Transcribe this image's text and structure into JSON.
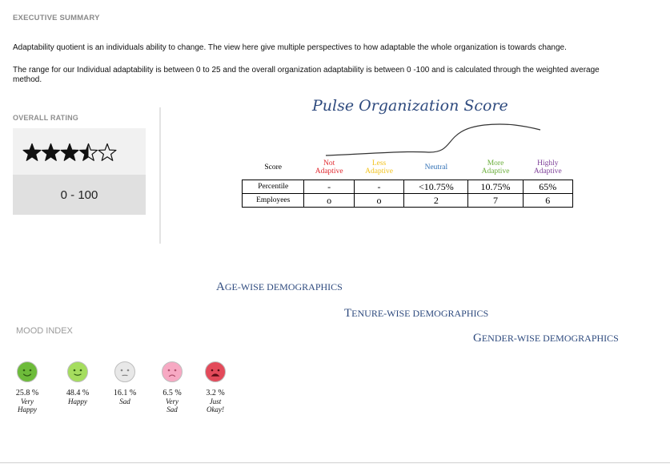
{
  "executive_summary": {
    "title": "EXECUTIVE SUMMARY",
    "paragraph1": "Adaptability quotient is an individuals ability to change. The view here give multiple perspectives to how adaptable the whole organization is towards change.",
    "paragraph2": "The range for our Individual adaptability is between 0 to 25 and the overall organization adaptability is between 0 -100 and is calculated through the weighted average method."
  },
  "overall_rating": {
    "title": "OVERALL RATING",
    "stars": 3.5,
    "max_stars": 5,
    "range": "0 - 100"
  },
  "pulse": {
    "title": "Pulse Organization Score",
    "header_label": "Score",
    "columns": [
      {
        "line1": "Not",
        "line2": "Adaptive",
        "color": "#e0282e"
      },
      {
        "line1": "Less",
        "line2": "Adaptive",
        "color": "#f2c21b"
      },
      {
        "line1": "Neutral",
        "line2": "",
        "color": "#2f6fb5"
      },
      {
        "line1": "More",
        "line2": "Adaptive",
        "color": "#6aae3a"
      },
      {
        "line1": "Highly",
        "line2": "Adaptive",
        "color": "#7d3f98"
      }
    ],
    "rows": [
      {
        "label": "Percentile",
        "values": [
          "-",
          "-",
          "<10.75%",
          "10.75%",
          "65%"
        ]
      },
      {
        "label": "Employees",
        "values": [
          "o",
          "o",
          "2",
          "7",
          "6"
        ]
      }
    ]
  },
  "demographics": [
    {
      "big": "A",
      "rest": "GE-WISE DEMOGRAPHICS"
    },
    {
      "big": "T",
      "rest": "ENURE-WISE DEMOGRAPHICS"
    },
    {
      "big": "G",
      "rest": "ENDER-WISE DEMOGRAPHICS"
    }
  ],
  "mood_index": {
    "title": "MOOD INDEX",
    "items": [
      {
        "percent": "25.8 %",
        "label1": "Very",
        "label2": "Happy",
        "color": "#6dbb3a",
        "mood": "very-happy"
      },
      {
        "percent": "48.4 %",
        "label1": "Happy",
        "label2": "",
        "color": "#a5dd5e",
        "mood": "happy"
      },
      {
        "percent": "16.1 %",
        "label1": "Sad",
        "label2": "",
        "color": "#e8e8e8",
        "mood": "sad"
      },
      {
        "percent": "6.5 %",
        "label1": "Very",
        "label2": "Sad",
        "color": "#f7a9c3",
        "mood": "very-sad"
      },
      {
        "percent": "3.2 %",
        "label1": "Just",
        "label2": "Okay!",
        "color": "#e34a5a",
        "mood": "just-okay"
      }
    ]
  }
}
